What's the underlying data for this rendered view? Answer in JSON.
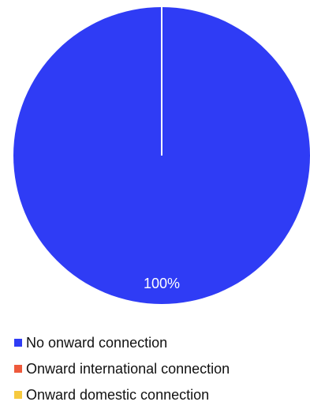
{
  "chart_data": {
    "type": "pie",
    "categories": [
      "No onward connection",
      "Onward international connection",
      "Onward domestic connection"
    ],
    "values": [
      100,
      0,
      0
    ],
    "value_labels": [
      "100%"
    ],
    "colors": [
      "#2f3cf5",
      "#ee5a3c",
      "#f6c93e"
    ],
    "legend_position": "bottom-left"
  }
}
